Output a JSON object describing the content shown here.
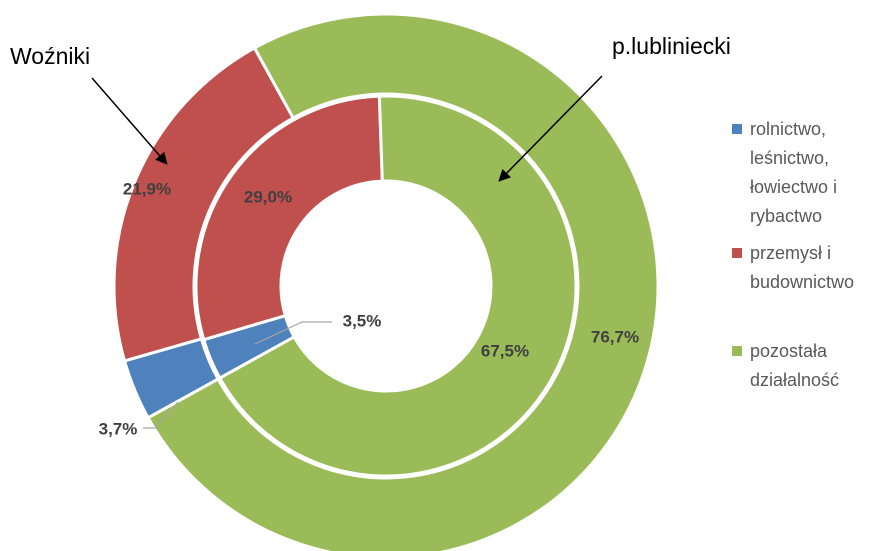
{
  "chart_data": {
    "type": "donut",
    "categories": [
      "rolnictwo, leśnictwo, łowiectwo i rybactwo",
      "przemysł i budownictwo",
      "pozostała działalność"
    ],
    "colors": [
      "#4f81bd",
      "#c0504d",
      "#9bbb59"
    ],
    "series": [
      {
        "name": "Woźniki",
        "values": [
          3.7,
          21.9,
          76.7
        ],
        "value_labels": [
          "3,7%",
          "21,9%",
          "76,7%"
        ]
      },
      {
        "name": "p.lubliniecki",
        "values": [
          3.5,
          29.0,
          67.5
        ],
        "value_labels": [
          "3,5%",
          "29,0%",
          "67,5%"
        ]
      }
    ]
  }
}
